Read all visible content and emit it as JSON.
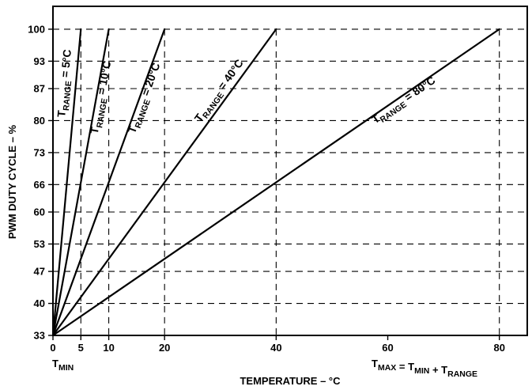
{
  "chart_data": {
    "type": "line",
    "xlabel": "TEMPERATURE – °C",
    "ylabel": "PWM DUTY CYCLE – %",
    "xlim": [
      0,
      85
    ],
    "ylim": [
      33,
      105
    ],
    "x_ticks": [
      0,
      5,
      10,
      20,
      40,
      60,
      80
    ],
    "x_tick_labels": [
      "0",
      "5",
      "10",
      "20",
      "40",
      "60",
      "80"
    ],
    "y_ticks": [
      33,
      40,
      47,
      53,
      60,
      66,
      73,
      80,
      87,
      93,
      100
    ],
    "y_tick_labels": [
      "33",
      "40",
      "47",
      "53",
      "60",
      "66",
      "73",
      "80",
      "87",
      "93",
      "100"
    ],
    "grid": {
      "horizontal_dashed": true,
      "vertical_dashed_at_x": [
        5,
        10,
        20,
        40,
        80
      ]
    },
    "series": [
      {
        "label_main": "T",
        "label_sub": "RANGE",
        "label_tail": " = 5°C",
        "x": [
          0,
          5
        ],
        "y": [
          33,
          100
        ]
      },
      {
        "label_main": "T",
        "label_sub": "RANGE",
        "label_tail": " = 10°C",
        "x": [
          0,
          10
        ],
        "y": [
          33,
          100
        ]
      },
      {
        "label_main": "T",
        "label_sub": "RANGE",
        "label_tail": " = 20°C",
        "x": [
          0,
          20
        ],
        "y": [
          33,
          100
        ]
      },
      {
        "label_main": "T",
        "label_sub": "RANGE",
        "label_tail": " = 40°C",
        "x": [
          0,
          40
        ],
        "y": [
          33,
          100
        ]
      },
      {
        "label_main": "T",
        "label_sub": "RANGE",
        "label_tail": " = 80°C",
        "x": [
          0,
          80
        ],
        "y": [
          33,
          100
        ]
      }
    ],
    "annotations": {
      "tmin": {
        "main": "T",
        "sub": "MIN"
      },
      "tmax_formula": [
        {
          "main": "T",
          "sub": "MAX"
        },
        {
          "text": " = "
        },
        {
          "main": "T",
          "sub": "MIN"
        },
        {
          "text": " + "
        },
        {
          "main": "T",
          "sub": "RANGE"
        }
      ]
    }
  }
}
